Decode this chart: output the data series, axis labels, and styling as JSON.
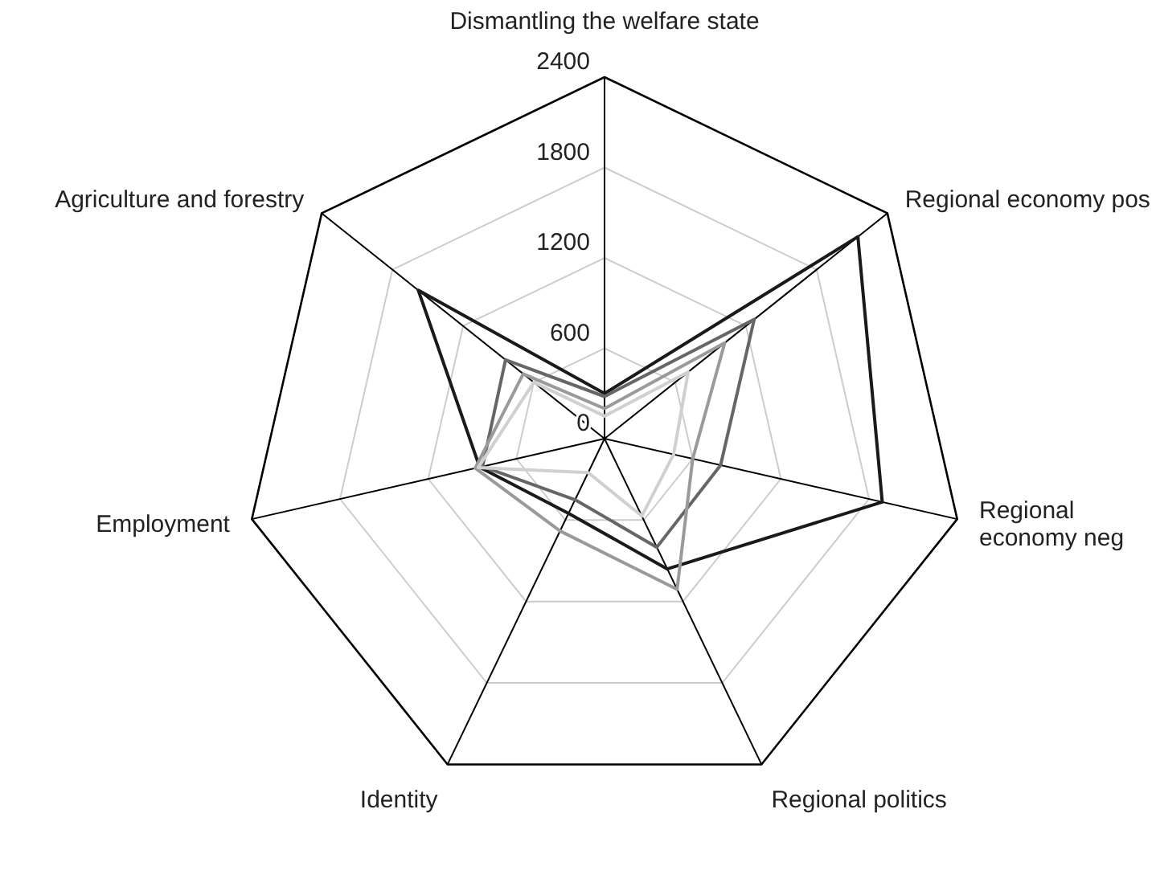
{
  "chart_data": {
    "type": "radar",
    "categories": [
      "Dismantling the welfare state",
      "Regional economy pos",
      "Regional economy neg",
      "Regional politics",
      "Identity",
      "Employment",
      "Agriculture and forestry"
    ],
    "series": [
      {
        "color": "#1a1a1a",
        "values": [
          300,
          2150,
          1890,
          960,
          550,
          850,
          1580
        ]
      },
      {
        "color": "#666666",
        "values": [
          280,
          1270,
          790,
          800,
          450,
          830,
          840
        ]
      },
      {
        "color": "#9a9a9a",
        "values": [
          200,
          1020,
          600,
          1110,
          680,
          880,
          690
        ]
      },
      {
        "color": "#d0d0d0",
        "values": [
          150,
          710,
          470,
          570,
          250,
          860,
          600
        ]
      }
    ],
    "ylim": [
      0,
      2400
    ],
    "yticks": [
      0,
      600,
      1200,
      1800,
      2400
    ],
    "legend": false
  }
}
